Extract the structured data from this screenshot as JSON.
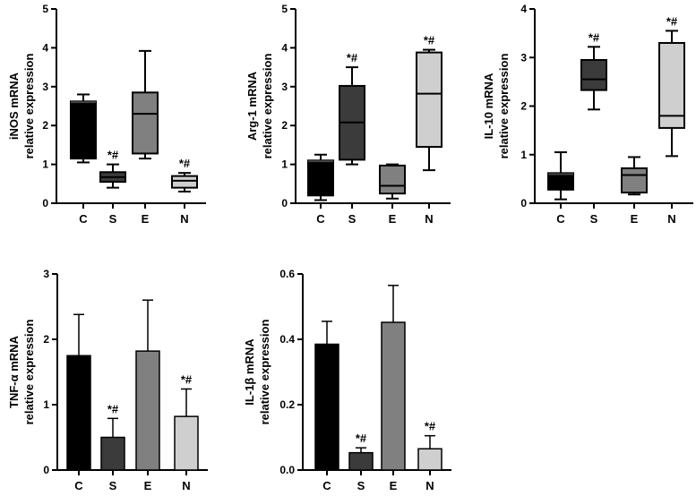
{
  "colors": {
    "C": "#000000",
    "S": "#3b3b3b",
    "E": "#808080",
    "N": "#cfcfcf"
  },
  "chart_data": [
    {
      "id": "inos",
      "type": "box",
      "ylabel": [
        "iNOS mRNA",
        "relative expression"
      ],
      "ylim": [
        0,
        5
      ],
      "ticks": [
        "0",
        "1",
        "2",
        "3",
        "4",
        "5"
      ],
      "categories": [
        "C",
        "S",
        "E",
        "N"
      ],
      "series": [
        {
          "name": "C",
          "min": 1.05,
          "q1": 1.15,
          "median": 2.6,
          "q3": 2.62,
          "max": 2.8,
          "sig": ""
        },
        {
          "name": "S",
          "min": 0.4,
          "q1": 0.55,
          "median": 0.67,
          "q3": 0.8,
          "max": 1.0,
          "sig": "*#"
        },
        {
          "name": "E",
          "min": 1.15,
          "q1": 1.28,
          "median": 2.3,
          "q3": 2.85,
          "max": 3.92,
          "sig": ""
        },
        {
          "name": "N",
          "min": 0.3,
          "q1": 0.4,
          "median": 0.58,
          "q3": 0.7,
          "max": 0.78,
          "sig": "*#"
        }
      ]
    },
    {
      "id": "arg1",
      "type": "box",
      "ylabel": [
        "Arg-1 mRNA",
        "relative expression"
      ],
      "ylim": [
        0,
        5
      ],
      "ticks": [
        "0",
        "1",
        "2",
        "3",
        "4",
        "5"
      ],
      "categories": [
        "C",
        "S",
        "E",
        "N"
      ],
      "series": [
        {
          "name": "C",
          "min": 0.08,
          "q1": 0.2,
          "median": 1.08,
          "q3": 1.1,
          "max": 1.25,
          "sig": ""
        },
        {
          "name": "S",
          "min": 1.0,
          "q1": 1.12,
          "median": 2.08,
          "q3": 3.02,
          "max": 3.5,
          "sig": "*#"
        },
        {
          "name": "E",
          "min": 0.12,
          "q1": 0.25,
          "median": 0.45,
          "q3": 0.97,
          "max": 1.0,
          "sig": ""
        },
        {
          "name": "N",
          "min": 0.85,
          "q1": 1.45,
          "median": 2.82,
          "q3": 3.88,
          "max": 3.95,
          "sig": "*#"
        }
      ]
    },
    {
      "id": "il10",
      "type": "box",
      "ylabel": [
        "IL-10 mRNA",
        "relative expression"
      ],
      "ylim": [
        0,
        4
      ],
      "ticks": [
        "0",
        "1",
        "2",
        "3",
        "4"
      ],
      "categories": [
        "C",
        "S",
        "E",
        "N"
      ],
      "series": [
        {
          "name": "C",
          "min": 0.08,
          "q1": 0.28,
          "median": 0.6,
          "q3": 0.62,
          "max": 1.05,
          "sig": ""
        },
        {
          "name": "S",
          "min": 1.93,
          "q1": 2.33,
          "median": 2.55,
          "q3": 2.95,
          "max": 3.22,
          "sig": "*#"
        },
        {
          "name": "E",
          "min": 0.18,
          "q1": 0.22,
          "median": 0.58,
          "q3": 0.72,
          "max": 0.95,
          "sig": ""
        },
        {
          "name": "N",
          "min": 0.97,
          "q1": 1.55,
          "median": 1.8,
          "q3": 3.3,
          "max": 3.55,
          "sig": "*#"
        }
      ]
    },
    {
      "id": "tnfa",
      "type": "bar",
      "ylabel": [
        "TNF-α mRNA",
        "relative expression"
      ],
      "ylim": [
        0,
        3
      ],
      "ticks": [
        "0",
        "1",
        "2",
        "3"
      ],
      "categories": [
        "C",
        "S",
        "E",
        "N"
      ],
      "series": [
        {
          "name": "C",
          "value": 1.75,
          "err": 0.63,
          "sig": ""
        },
        {
          "name": "S",
          "value": 0.5,
          "err": 0.29,
          "sig": "*#"
        },
        {
          "name": "E",
          "value": 1.82,
          "err": 0.78,
          "sig": ""
        },
        {
          "name": "N",
          "value": 0.82,
          "err": 0.42,
          "sig": "*#"
        }
      ]
    },
    {
      "id": "il1b",
      "type": "bar",
      "ylabel": [
        "IL-1β mRNA",
        "relative expression"
      ],
      "ylim": [
        0,
        0.6
      ],
      "ticks": [
        "0.0",
        "0.2",
        "0.4",
        "0.6"
      ],
      "categories": [
        "C",
        "S",
        "E",
        "N"
      ],
      "series": [
        {
          "name": "C",
          "value": 0.385,
          "err": 0.07,
          "sig": ""
        },
        {
          "name": "S",
          "value": 0.053,
          "err": 0.015,
          "sig": "*#"
        },
        {
          "name": "E",
          "value": 0.452,
          "err": 0.113,
          "sig": ""
        },
        {
          "name": "N",
          "value": 0.065,
          "err": 0.04,
          "sig": "*#"
        }
      ]
    }
  ]
}
